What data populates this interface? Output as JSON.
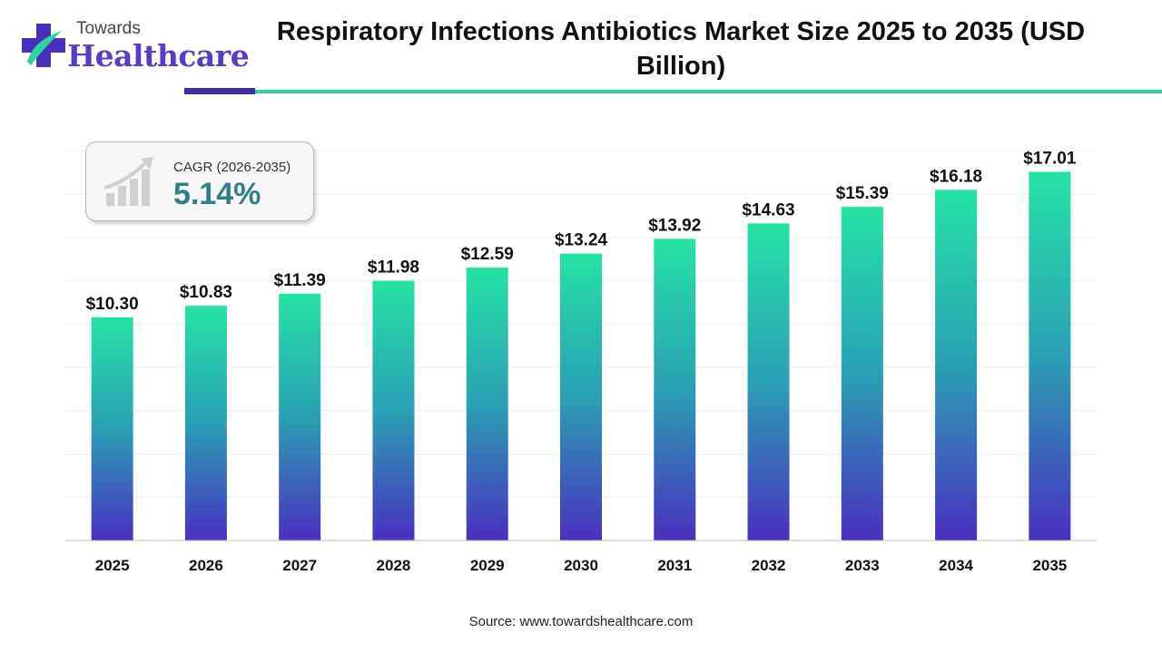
{
  "brand": {
    "line1": "Towards",
    "line2": "Healthcare"
  },
  "cagr": {
    "label": "CAGR (2026-2035)",
    "value": "5.14%"
  },
  "source": "Source: www.towardshealthcare.com",
  "colors": {
    "bar_top": "#25e3a4",
    "bar_mid": "#2aa0b4",
    "bar_bottom": "#4a2fbf",
    "accent": "#3d2ba8"
  },
  "chart_data": {
    "type": "bar",
    "title": "Respiratory Infections Antibiotics Market Size 2025 to 2035 (USD Billion)",
    "xlabel": "",
    "ylabel": "",
    "categories": [
      "2025",
      "2026",
      "2027",
      "2028",
      "2029",
      "2030",
      "2031",
      "2032",
      "2033",
      "2034",
      "2035"
    ],
    "values": [
      10.3,
      10.83,
      11.39,
      11.98,
      12.59,
      13.24,
      13.92,
      14.63,
      15.39,
      16.18,
      17.01
    ],
    "value_labels": [
      "$10.30",
      "$10.83",
      "$11.39",
      "$11.98",
      "$12.59",
      "$13.24",
      "$13.92",
      "$14.63",
      "$15.39",
      "$16.18",
      "$17.01"
    ],
    "ylim": [
      0,
      18
    ],
    "grid": true,
    "legend": "none"
  }
}
